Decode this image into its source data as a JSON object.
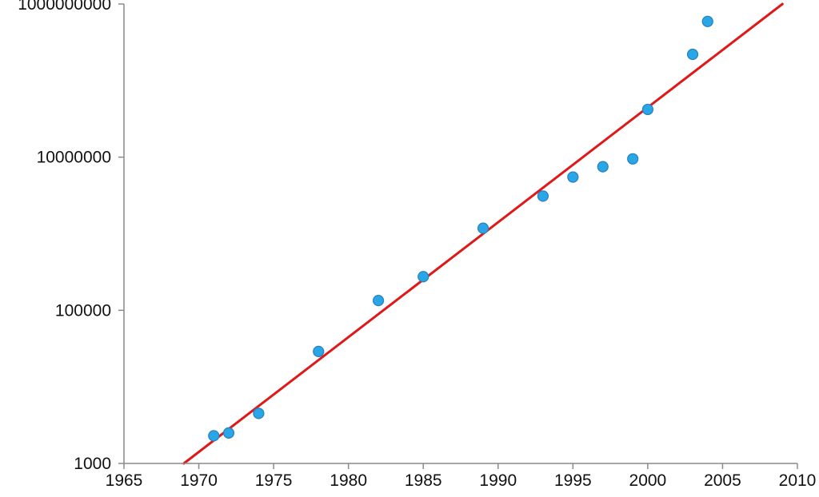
{
  "chart_data": {
    "type": "scatter",
    "title": "",
    "xlabel": "",
    "ylabel": "",
    "y_scale": "log",
    "xlim": [
      1965,
      2010
    ],
    "ylim": [
      1000,
      1000000000
    ],
    "grid": false,
    "legend": "none",
    "x_ticks": [
      "1965",
      "1970",
      "1975",
      "1980",
      "1985",
      "1990",
      "1995",
      "2000",
      "2005",
      "2010"
    ],
    "y_ticks": [
      "1000",
      "100000",
      "10000000",
      "1000000000"
    ],
    "series": [
      {
        "x": [
          1971,
          1972,
          1974,
          1978,
          1982,
          1985,
          1989,
          1993,
          1995,
          1997,
          1999,
          2000,
          2003,
          2004
        ],
        "y": [
          2300,
          2500,
          4500,
          29000,
          134000,
          275000,
          1180000,
          3100000,
          5500000,
          7500000,
          9500000,
          42000000,
          220000000,
          592000000
        ]
      }
    ],
    "trend_line": {
      "x": [
        1969,
        2009
      ],
      "y": [
        1000,
        1000000000
      ]
    },
    "colors": {
      "points": "#29a6e6",
      "point_edge": "#2a7fbf",
      "trend": "#e01818",
      "axis": "#8a8a8a"
    }
  }
}
